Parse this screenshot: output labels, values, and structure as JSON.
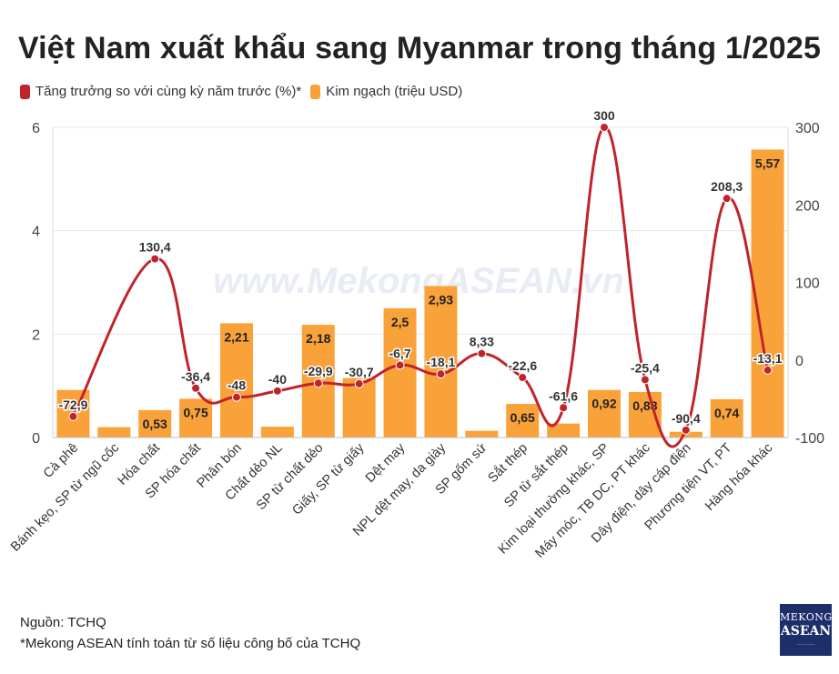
{
  "title": "Việt Nam xuất khẩu sang Myanmar trong tháng 1/2025",
  "legend": {
    "growth": "Tăng trưởng so với cùng kỳ năm trước (%)*",
    "value": "Kim ngạch (triệu USD)"
  },
  "watermark": "www.MekongASEAN.vn",
  "colors": {
    "bar": "#f9a23a",
    "line": "#c0242b",
    "grid": "#e6e6e6"
  },
  "chart_data": {
    "type": "bar+line",
    "categories": [
      "Cà phê",
      "Bánh kẹo, SP từ ngũ cốc",
      "Hóa chất",
      "SP hóa chất",
      "Phân bón",
      "Chất dẻo NL",
      "SP từ chất dẻo",
      "Giấy, SP từ giấy",
      "Dệt may",
      "NPL dệt may, da giày",
      "SP gốm sứ",
      "Sắt thép",
      "SP từ sắt thép",
      "Kim loại thường khác, SP",
      "Máy móc, TB DC, PT khác",
      "Dây điện, dây cáp điện",
      "Phương tiện VT, PT",
      "Hàng hóa khác"
    ],
    "series": [
      {
        "name": "Kim ngạch (triệu USD)",
        "type": "bar",
        "axis": "left",
        "values": [
          0.92,
          0.2,
          0.53,
          0.75,
          2.21,
          0.21,
          2.18,
          1.15,
          2.5,
          2.93,
          0.13,
          0.65,
          0.27,
          0.92,
          0.88,
          0.11,
          0.74,
          5.57
        ],
        "labels": [
          "",
          "",
          "0,53",
          "0,75",
          "2,21",
          "",
          "2,18",
          "",
          "2,5",
          "2,93",
          "",
          "0,65",
          "",
          "0,92",
          "0,88",
          "",
          "0,74",
          "5,57"
        ]
      },
      {
        "name": "Tăng trưởng so với cùng kỳ năm trước (%)*",
        "type": "line",
        "axis": "right",
        "values": [
          -72.9,
          null,
          130.4,
          -36.4,
          -48,
          -40,
          -29.9,
          -30.7,
          -6.7,
          -18.1,
          8.33,
          -22.6,
          -61.6,
          300,
          -25.4,
          -90.4,
          208.3,
          -13.1
        ],
        "labels": [
          "-72,9",
          "",
          "130,4",
          "-36,4",
          "-48",
          "-40",
          "-29,9",
          "-30,7",
          "-6,7",
          "-18,1",
          "8,33",
          "-22,6",
          "-61,6",
          "300",
          "-25,4",
          "-90,4",
          "208,3",
          "-13,1"
        ]
      }
    ],
    "ylim_left": [
      0,
      6
    ],
    "yticks_left": [
      "0",
      "2",
      "4",
      "6"
    ],
    "ylim_right": [
      -100,
      300
    ],
    "yticks_right": [
      "-100",
      "0",
      "100",
      "200",
      "300"
    ]
  },
  "footer": {
    "source": "Nguồn: TCHQ",
    "note": "*Mekong ASEAN tính toán từ số liệu công bố của TCHQ"
  },
  "logo": {
    "line1": "MEKONG",
    "line2": "ASEAN"
  }
}
